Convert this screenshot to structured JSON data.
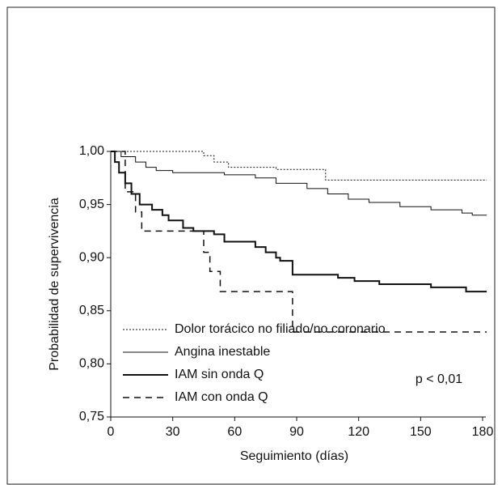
{
  "chart_data": {
    "type": "step",
    "x_label": "Seguimiento (días)",
    "y_label": "Probabilidad de supervivencia",
    "annotation": "p < 0,01",
    "xlim": [
      0,
      180
    ],
    "xticks": [
      0,
      30,
      60,
      90,
      120,
      150,
      180
    ],
    "ylim": [
      0.75,
      1.0
    ],
    "yticks": [
      {
        "value": 0.75,
        "label": "0,75"
      },
      {
        "value": 0.8,
        "label": "0,80"
      },
      {
        "value": 0.85,
        "label": "0,85"
      },
      {
        "value": 0.9,
        "label": "0,90"
      },
      {
        "value": 0.95,
        "label": "0,95"
      },
      {
        "value": 1.0,
        "label": "1,00"
      }
    ],
    "legend": "lower-left",
    "series": [
      {
        "name": "Dolor torácico no filiado/no coronario",
        "color": "#111",
        "line_style": "dotted",
        "line_width": 1,
        "x": [
          0,
          45,
          50,
          57,
          80,
          104,
          182
        ],
        "values": [
          1.0,
          0.996,
          0.99,
          0.985,
          0.983,
          0.973,
          0.973
        ]
      },
      {
        "name": "Angina inestable",
        "color": "#111",
        "line_style": "solid",
        "line_width": 1,
        "x": [
          0,
          5,
          12,
          17,
          22,
          30,
          55,
          70,
          80,
          95,
          105,
          115,
          125,
          140,
          155,
          170,
          175,
          182
        ],
        "values": [
          1.0,
          0.995,
          0.99,
          0.985,
          0.982,
          0.98,
          0.978,
          0.975,
          0.97,
          0.965,
          0.96,
          0.955,
          0.952,
          0.948,
          0.945,
          0.942,
          0.94,
          0.94
        ]
      },
      {
        "name": "IAM sin onda Q",
        "color": "#111",
        "line_style": "solid",
        "line_width": 2,
        "x": [
          0,
          2,
          4,
          7,
          10,
          14,
          20,
          25,
          28,
          35,
          40,
          50,
          55,
          70,
          75,
          80,
          82,
          88,
          110,
          118,
          130,
          155,
          172,
          182
        ],
        "values": [
          1.0,
          0.99,
          0.98,
          0.97,
          0.96,
          0.95,
          0.945,
          0.94,
          0.935,
          0.928,
          0.925,
          0.922,
          0.915,
          0.91,
          0.905,
          0.9,
          0.897,
          0.884,
          0.881,
          0.878,
          0.875,
          0.872,
          0.868,
          0.868
        ]
      },
      {
        "name": "IAM con onda Q",
        "color": "#111",
        "line_style": "dashed",
        "line_width": 1.5,
        "x": [
          0,
          7,
          12,
          15,
          45,
          48,
          53,
          88,
          182
        ],
        "values": [
          1.0,
          0.962,
          0.943,
          0.925,
          0.905,
          0.887,
          0.868,
          0.83,
          0.83
        ]
      }
    ]
  }
}
